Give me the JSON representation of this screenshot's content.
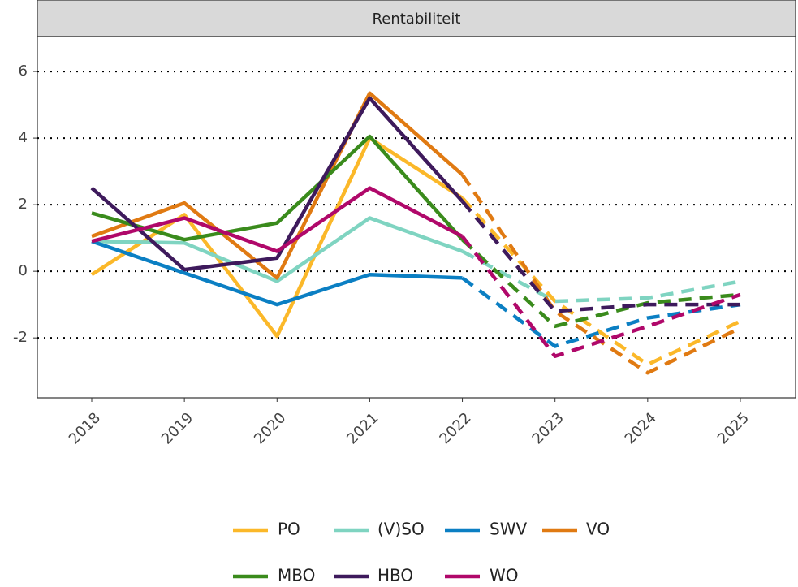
{
  "chart_data": {
    "type": "line",
    "title": "Rentabiliteit",
    "x": [
      2018,
      2019,
      2020,
      2021,
      2022,
      2023,
      2024,
      2025
    ],
    "xlim": [
      2017.413,
      2025.596
    ],
    "xticks": [
      2018,
      2019,
      2020,
      2021,
      2022,
      2023,
      2024,
      2025
    ],
    "ylim": [
      -3.8,
      7.05
    ],
    "yticks": [
      -2,
      0,
      2,
      4,
      6
    ],
    "grid": true,
    "dashed_from": 2022,
    "legend": "bottom",
    "series": [
      {
        "name": "PO",
        "color": "#fbb829",
        "values": [
          -0.1,
          1.7,
          -1.95,
          4.0,
          2.2,
          -0.9,
          -2.8,
          -1.5
        ]
      },
      {
        "name": "(V)SO",
        "color": "#7fd4c1",
        "values": [
          0.9,
          0.85,
          -0.3,
          1.6,
          0.6,
          -0.9,
          -0.8,
          -0.3
        ]
      },
      {
        "name": "SWV",
        "color": "#0b7fc3",
        "values": [
          0.9,
          -0.05,
          -1.0,
          -0.1,
          -0.2,
          -2.25,
          -1.4,
          -1.0
        ]
      },
      {
        "name": "VO",
        "color": "#e07a12",
        "values": [
          1.05,
          2.05,
          -0.2,
          5.35,
          2.9,
          -1.2,
          -3.05,
          -1.7
        ]
      },
      {
        "name": "MBO",
        "color": "#3a8b1c",
        "values": [
          1.75,
          0.95,
          1.45,
          4.05,
          0.95,
          -1.65,
          -0.95,
          -0.7
        ]
      },
      {
        "name": "HBO",
        "color": "#3e1a5c",
        "values": [
          2.5,
          0.05,
          0.4,
          5.2,
          2.1,
          -1.2,
          -1.0,
          -1.0
        ]
      },
      {
        "name": "WO",
        "color": "#b0086a",
        "values": [
          0.9,
          1.6,
          0.6,
          2.5,
          1.05,
          -2.55,
          -1.65,
          -0.7
        ]
      }
    ]
  }
}
